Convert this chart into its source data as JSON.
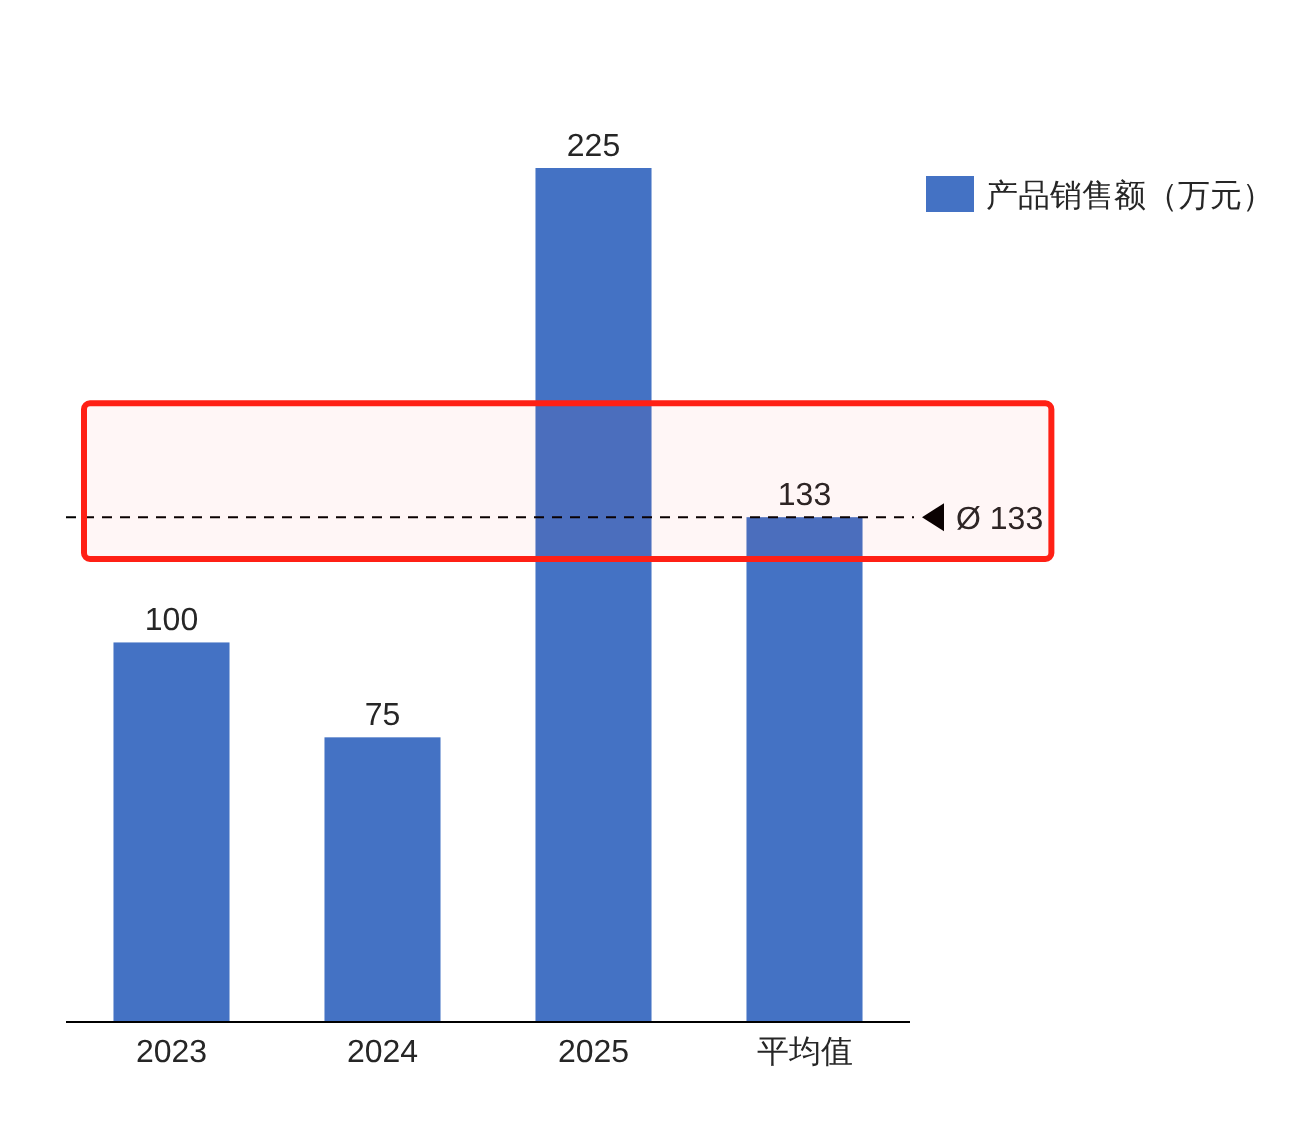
{
  "chart_data": {
    "type": "bar",
    "categories": [
      "2023",
      "2024",
      "2025",
      "平均值"
    ],
    "series": [
      {
        "name": "产品销售额（万元）",
        "color": "#4472c4",
        "values": [
          100,
          75,
          225,
          133
        ]
      }
    ],
    "data_labels": true,
    "legend": "top right",
    "ref_lines": [
      {
        "axis": "y",
        "value": 133,
        "label": "Ø 133",
        "color": "#000000",
        "line_style": "dashed"
      }
    ],
    "bands": [
      {
        "axis": "y",
        "from": 122,
        "to": 163,
        "color": "#ff2015"
      }
    ]
  }
}
